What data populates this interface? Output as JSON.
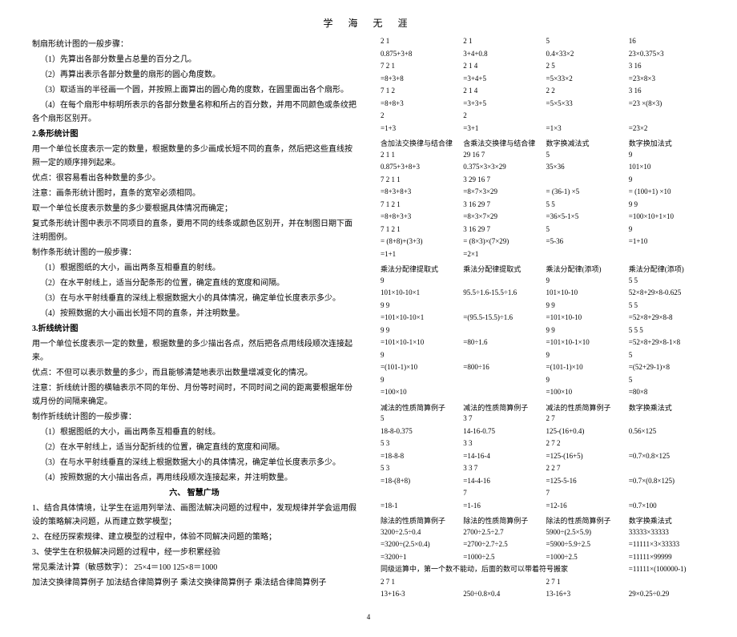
{
  "header": "学  海  无  涯",
  "left": {
    "lines": [
      "制扇形统计图的一般步骤：",
      "（1）先算出各部分数量占总量的百分之几。",
      "（2）再算出表示各部分数量的扇形的圆心角度数。",
      "（3）取适当的半径画一个圆，并按照上面算出的圆心角的度数，在圆里面出各个扇形。",
      "（4）在每个扇形中标明所表示的各部分数量名称和所占的百分数，并用不同颜色或条纹把各个扇形区别开。",
      "2.条形统计图",
      "用一个单位长度表示一定的数量，根据数量的多少画成长短不同的直条，然后把这些直线按照一定的顺序排列起来。",
      "优点：很容易看出各种数量的多少。",
      "注意：画条形统计图时，直条的宽窄必须相同。",
      "取一个单位长度表示数量的多少要根据具体情况而确定；",
      "复式条形统计图中表示不同项目的直条，要用不同的线条或颜色区别开，并在制图日期下面注明图例。",
      "制作条形统计图的一般步骤：",
      "（1）根据图纸的大小，画出两条互相垂直的射线。",
      "（2）在水平射线上，适当分配条形的位置，确定直线的宽度和间隔。",
      "（3）在与水平射线垂直的深线上根据数据大小的具体情况，确定单位长度表示多少。",
      "（4）按照数据的大小画出长短不同的直条，并注明数量。",
      "3.折线统计图",
      "用一个单位长度表示一定的数量，根据数量的多少描出各点，然后把各点用线段顺次连接起来。",
      "优点：不但可以表示数量的多少，而且能够清楚地表示出数量增减变化的情况。",
      "注意：折线统计图的横轴表示不同的年份、月份等时间时，不同时间之间的距离要根据年份或月份的间隔来确定。",
      "",
      "制作折线统计图的一般步骤：",
      "（1）根据图纸的大小，画出两条互相垂直的射线。",
      "（2）在水平射线上，适当分配折线的位置，确定直线的宽度和间隔。",
      "（3）在与水平射线垂直的深线上根据数据大小的具体情况，确定单位长度表示多少。",
      "（4）按照数据的大小描出各点，再用线段顺次连接起来，并注明数量。",
      "1、结合具体情境，让学生在运用列举法、画图法解决问题的过程中，发现规律并学会运用假设的策略解决问题，从而建立数学模型；",
      "2、在经历探索规律、建立模型的过程中，体验不同解决问题的策略；",
      "3、使学生在积极解决问题的过程中，经一步积累经验",
      "常见乘法计算（敏感数字）： 25×4＝100     125×8＝1000",
      "加法交换律简算例子   加法结合律简算例子   乘法交换律简算例子   乘法结合律简算例子"
    ],
    "section6": "六、 智慧广场"
  },
  "right": {
    "row1": [
      "0.875+3+8",
      "3+4+0.8",
      "0.4×33×2",
      "23×0.375×3"
    ],
    "sub1a": [
      "2  1",
      "2  1",
      "5",
      "16"
    ],
    "sub1b": [
      "7  2  1",
      "2  1  4",
      "2  5",
      "3  16"
    ],
    "row2": [
      "=8+3+8",
      "=3+4+5",
      "=5×33×2",
      "=23×8×3"
    ],
    "row3": [
      "7  1  2",
      "2  1  4",
      "2  2",
      "3  16"
    ],
    "row4": [
      "=8+8+3",
      "=3+3+5",
      "=5×5×33",
      "=23 ×(8×3)"
    ],
    "row5": [
      "2",
      "2",
      "",
      ""
    ],
    "row6": [
      "=1+3",
      "=3+1",
      "=1×3",
      "=23×2"
    ],
    "hdr1": [
      "含加法交换律与结合律",
      "含乘法交换律与结合律",
      "数字换减法式",
      "数字换加法式"
    ],
    "row7": [
      "0.875+3+8+3",
      "0.375×3×3×29",
      "35×36",
      "101×10"
    ],
    "sub7": [
      "2  1  1",
      "29  16  7",
      "5",
      "9"
    ],
    "row8": [
      "7  2  1  1",
      "3  29  16  7",
      "",
      "9"
    ],
    "row9": [
      "=8+3+8+3",
      "=8×7×3×29",
      "= (36-1) ×5",
      "= (100+1) ×10"
    ],
    "row10": [
      "7  1  2  1",
      "3  16  29  7",
      "5     5",
      "9     9"
    ],
    "row11": [
      "=8+8+3+3",
      "=8×3×7×29",
      "=36×5-1×5",
      "=100×10+1×10"
    ],
    "row12": [
      "7  1   2  1",
      "3  16   29  7",
      "5",
      "9"
    ],
    "row13": [
      "= (8+8)+(3+3)",
      "= (8×3)×(7×29)",
      "=5-36",
      "=1+10"
    ],
    "row14": [
      "=1+1",
      "=2×1",
      "",
      ""
    ],
    "hdr2": [
      "乘法分配律提取式",
      "乘法分配律提取式",
      "乘法分配律(添项)",
      "乘法分配律(添项)"
    ],
    "row15": [
      "9",
      "",
      "9",
      "5     5"
    ],
    "row16": [
      "101×10-10×1",
      "95.5÷1.6-15.5÷1.6",
      "101×10-10",
      "52×8+29×8-0.625"
    ],
    "row17": [
      "9   9",
      "",
      "9   9",
      "5     5"
    ],
    "row18": [
      "=101×10-10×1",
      "=(95.5-15.5)÷1.6",
      "=101×10-10",
      "=52×8+29×8-8"
    ],
    "row19": [
      "9   9",
      "",
      "9   9",
      "5     5     5"
    ],
    "row20": [
      "=101×10-1×10",
      "=80÷1.6",
      "=101×10-1×10",
      "=52×8+29×8-1×8"
    ],
    "row21": [
      "9",
      "",
      "9",
      "5"
    ],
    "row22": [
      "=(101-1)×10",
      "=800÷16",
      "=(101-1)×10",
      "=(52+29-1)×8"
    ],
    "row23": [
      "9",
      "",
      "9",
      "5"
    ],
    "row24": [
      "=100×10",
      "",
      "=100×10",
      "=80×8"
    ],
    "hdr3": [
      "减法的性质简算例子",
      "减法的性质简算例子",
      "减法的性质简算例子",
      "数字换乘法式"
    ],
    "row25": [
      "5",
      "3  7",
      "2  7",
      ""
    ],
    "row26": [
      "18-8-0.375",
      "14-16-0.75",
      "125-(16+0.4)",
      "0.56×125"
    ],
    "row27": [
      "5  3",
      "3  3",
      "2  7  2",
      ""
    ],
    "row28": [
      "=18-8-8",
      "=14-16-4",
      "=125-(16+5)",
      "=0.7×0.8×125"
    ],
    "row29": [
      "5   3",
      "3  3  7",
      "2  2  7",
      ""
    ],
    "row30": [
      "=18-(8+8)",
      "=14-4-16",
      "=125-5-16",
      "=0.7×(0.8×125)"
    ],
    "row31": [
      "",
      "7",
      "7",
      ""
    ],
    "row32": [
      "=18-1",
      "=1-16",
      "=12-16",
      "=0.7×100"
    ],
    "hdr4": [
      "除法的性质简算例子",
      "除法的性质简算例子",
      "除法的性质简算例子",
      "数字换乘法式"
    ],
    "row33": [
      "3200÷2.5÷0.4",
      "2700÷2.5÷2.7",
      "5900÷(2.5×5.9)",
      "33333×33333"
    ],
    "row34": [
      "=3200÷(2.5×0.4)",
      "=2700÷2.7÷2.5",
      "=5900÷5.9÷2.5",
      "=11111×3×33333"
    ],
    "row35": [
      "=3200÷1",
      "=1000÷2.5",
      "=1000÷2.5",
      "=11111×99999"
    ],
    "row36": [
      "同级运算中，第一个数不能动，后面的数可以带着符号搬家",
      "",
      "",
      "=11111×(100000-1)"
    ],
    "row37": [
      "2  7  1",
      "",
      "2  7  1",
      ""
    ],
    "row38": [
      "13+16-3",
      "250÷0.8×0.4",
      "13-16+3",
      "29×0.25÷0.29"
    ]
  },
  "page": "4"
}
